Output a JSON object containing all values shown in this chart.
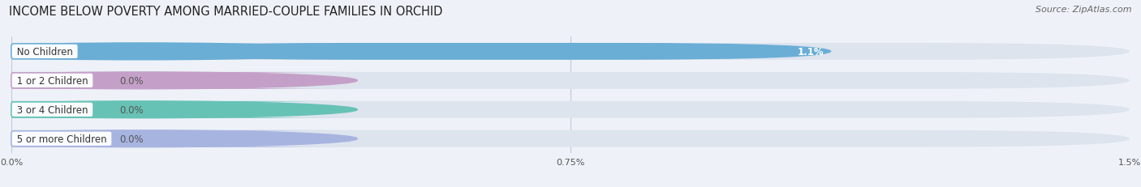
{
  "title": "INCOME BELOW POVERTY AMONG MARRIED-COUPLE FAMILIES IN ORCHID",
  "source": "Source: ZipAtlas.com",
  "categories": [
    "No Children",
    "1 or 2 Children",
    "3 or 4 Children",
    "5 or more Children"
  ],
  "values": [
    1.1,
    0.0,
    0.0,
    0.0
  ],
  "bar_colors": [
    "#6aaed6",
    "#c4a0c8",
    "#66c2b5",
    "#a8b4e0"
  ],
  "xlim": [
    0,
    1.5
  ],
  "xticks": [
    0.0,
    0.75,
    1.5
  ],
  "xtick_labels": [
    "0.0%",
    "0.75%",
    "1.5%"
  ],
  "bg_color": "#eef2f8",
  "bar_bg_color": "#dde4ee",
  "row_bg_color": "#e8edf5",
  "title_fontsize": 10.5,
  "source_fontsize": 8,
  "label_fontsize": 8.5,
  "value_fontsize": 8.5
}
